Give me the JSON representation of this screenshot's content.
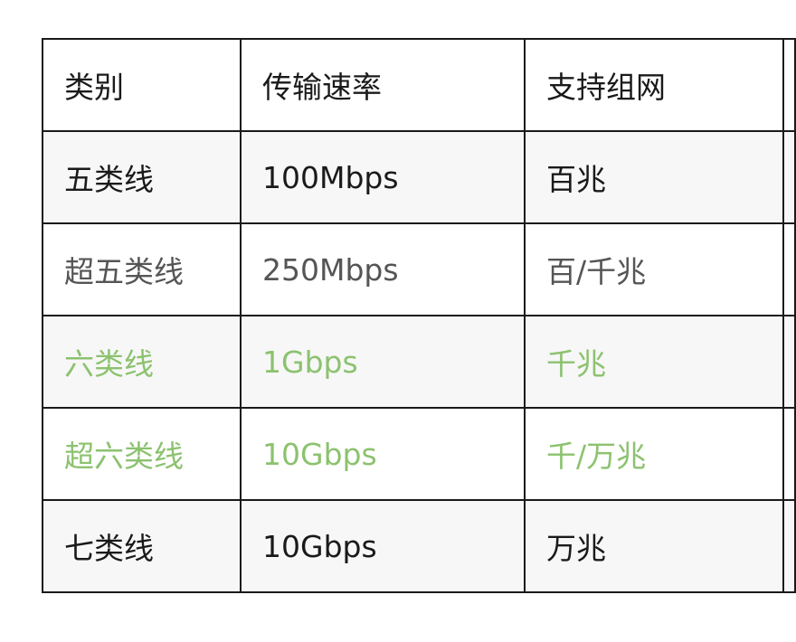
{
  "table": {
    "headers": [
      "类别",
      "传输速率",
      "支持组网",
      ""
    ],
    "rows": [
      {
        "cells": [
          "五类线",
          "100Mbps",
          "百兆",
          ""
        ],
        "color": "#1a1a1a"
      },
      {
        "cells": [
          "超五类线",
          "250Mbps",
          "百/千兆",
          ""
        ],
        "color": "#555555"
      },
      {
        "cells": [
          "六类线",
          "1Gbps",
          "千兆",
          ""
        ],
        "color": "#8cc26f"
      },
      {
        "cells": [
          "超六类线",
          "10Gbps",
          "千/万兆",
          ""
        ],
        "color": "#8cc26f"
      },
      {
        "cells": [
          "七类线",
          "10Gbps",
          "万兆",
          ""
        ],
        "color": "#1a1a1a"
      }
    ]
  }
}
